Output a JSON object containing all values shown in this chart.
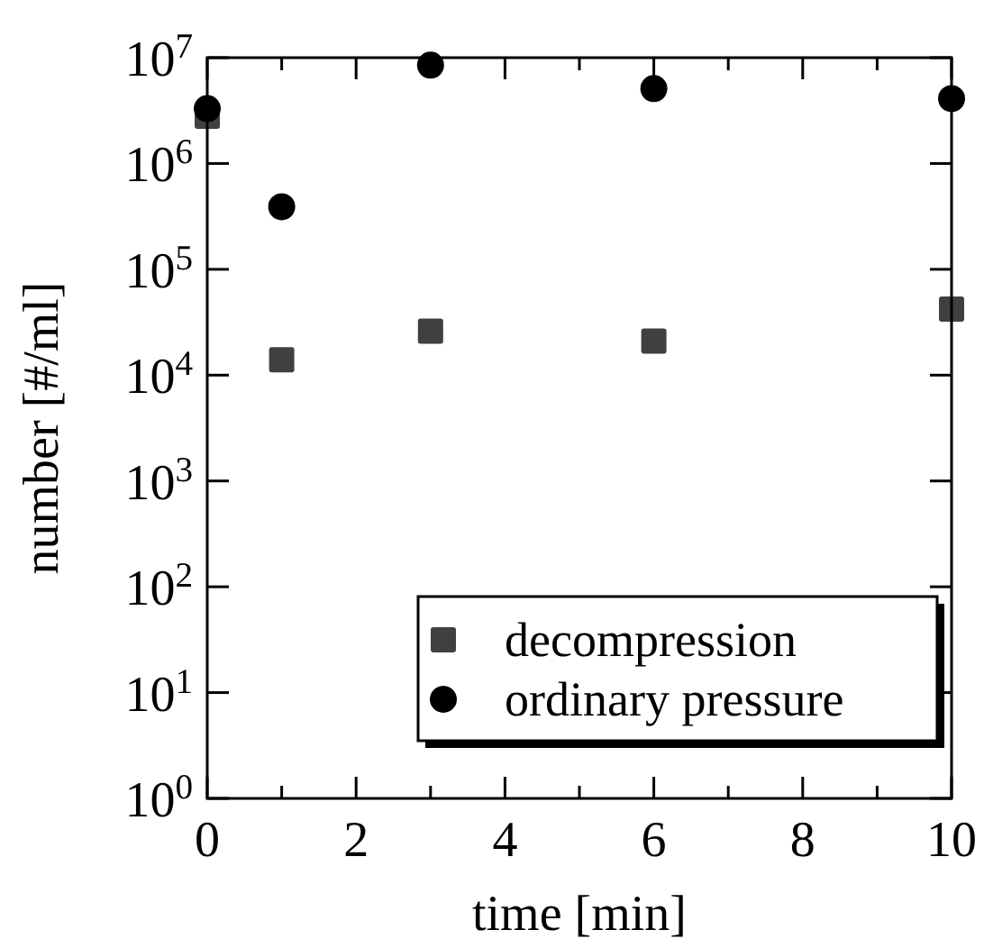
{
  "chart_data": {
    "type": "scatter",
    "xlabel": "time [min]",
    "ylabel": "number [#/ml]",
    "log": "y",
    "legend": "bottom right",
    "grid": false,
    "xlim": [
      0,
      10
    ],
    "xticks": [
      0,
      {
        "value": 1,
        "label": null
      },
      2,
      {
        "value": 3,
        "label": null
      },
      4,
      {
        "value": 5,
        "label": null
      },
      6,
      {
        "value": 7,
        "label": null
      },
      8,
      {
        "value": 9,
        "label": null
      },
      10
    ],
    "ylim": [
      1,
      10000000
    ],
    "yticks": [
      {
        "value": 1,
        "label": "10$^{0}$"
      },
      {
        "value": 10,
        "label": "10$^{1}$"
      },
      {
        "value": 100,
        "label": "10$^{2}$"
      },
      {
        "value": 1000,
        "label": "10$^{3}$"
      },
      {
        "value": 10000,
        "label": "10$^{4}$"
      },
      {
        "value": 100000,
        "label": "10$^{5}$"
      },
      {
        "value": 1000000,
        "label": "10$^{6}$"
      },
      {
        "value": 10000000,
        "label": "10$^{7}$"
      }
    ],
    "x": [
      0,
      1,
      3,
      6,
      10
    ],
    "series": [
      {
        "name": "decompression",
        "color": "#404040",
        "marker": "square",
        "values": [
          2800000,
          14000,
          26000,
          21000,
          42000
        ]
      },
      {
        "name": "ordinary pressure",
        "color": "#000000",
        "marker": "circle",
        "values": [
          3300000,
          390000,
          8500000,
          5100000,
          4100000
        ]
      }
    ]
  }
}
